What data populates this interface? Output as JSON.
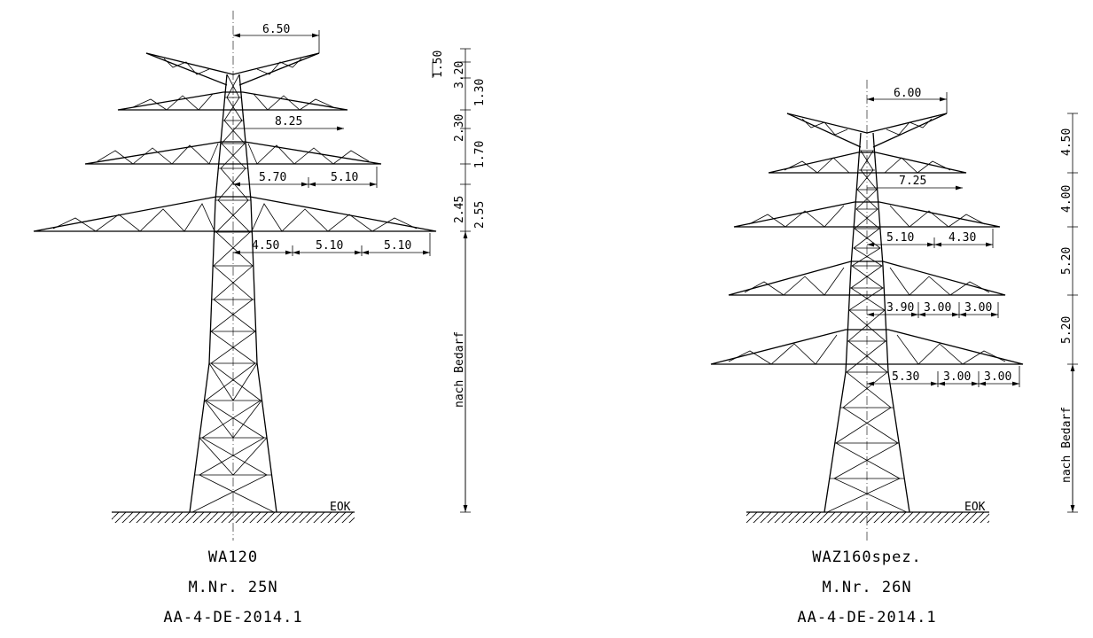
{
  "towers": [
    {
      "name": "WA120",
      "number": "M.Nr. 25N",
      "code": "AA-4-DE-2014.1",
      "ground_label": "EOK",
      "horizontal_dims": [
        "6.50",
        "8.25",
        "5.70",
        "5.10",
        "4.50",
        "5.10",
        "5.10"
      ],
      "vertical_dims": [
        "1.50",
        "3.20",
        "1.30",
        "2.30",
        "1.70",
        "2.45",
        "2.55"
      ],
      "height_label": "nach Bedarf"
    },
    {
      "name": "WAZ160spez.",
      "number": "M.Nr. 26N",
      "code": "AA-4-DE-2014.1",
      "ground_label": "EOK",
      "horizontal_dims": [
        "6.00",
        "7.25",
        "5.10",
        "4.30",
        "3.90",
        "3.00",
        "3.00",
        "5.30",
        "3.00",
        "3.00"
      ],
      "vertical_dims": [
        "4.50",
        "4.00",
        "5.20",
        "5.20"
      ],
      "height_label": "nach Bedarf"
    }
  ]
}
